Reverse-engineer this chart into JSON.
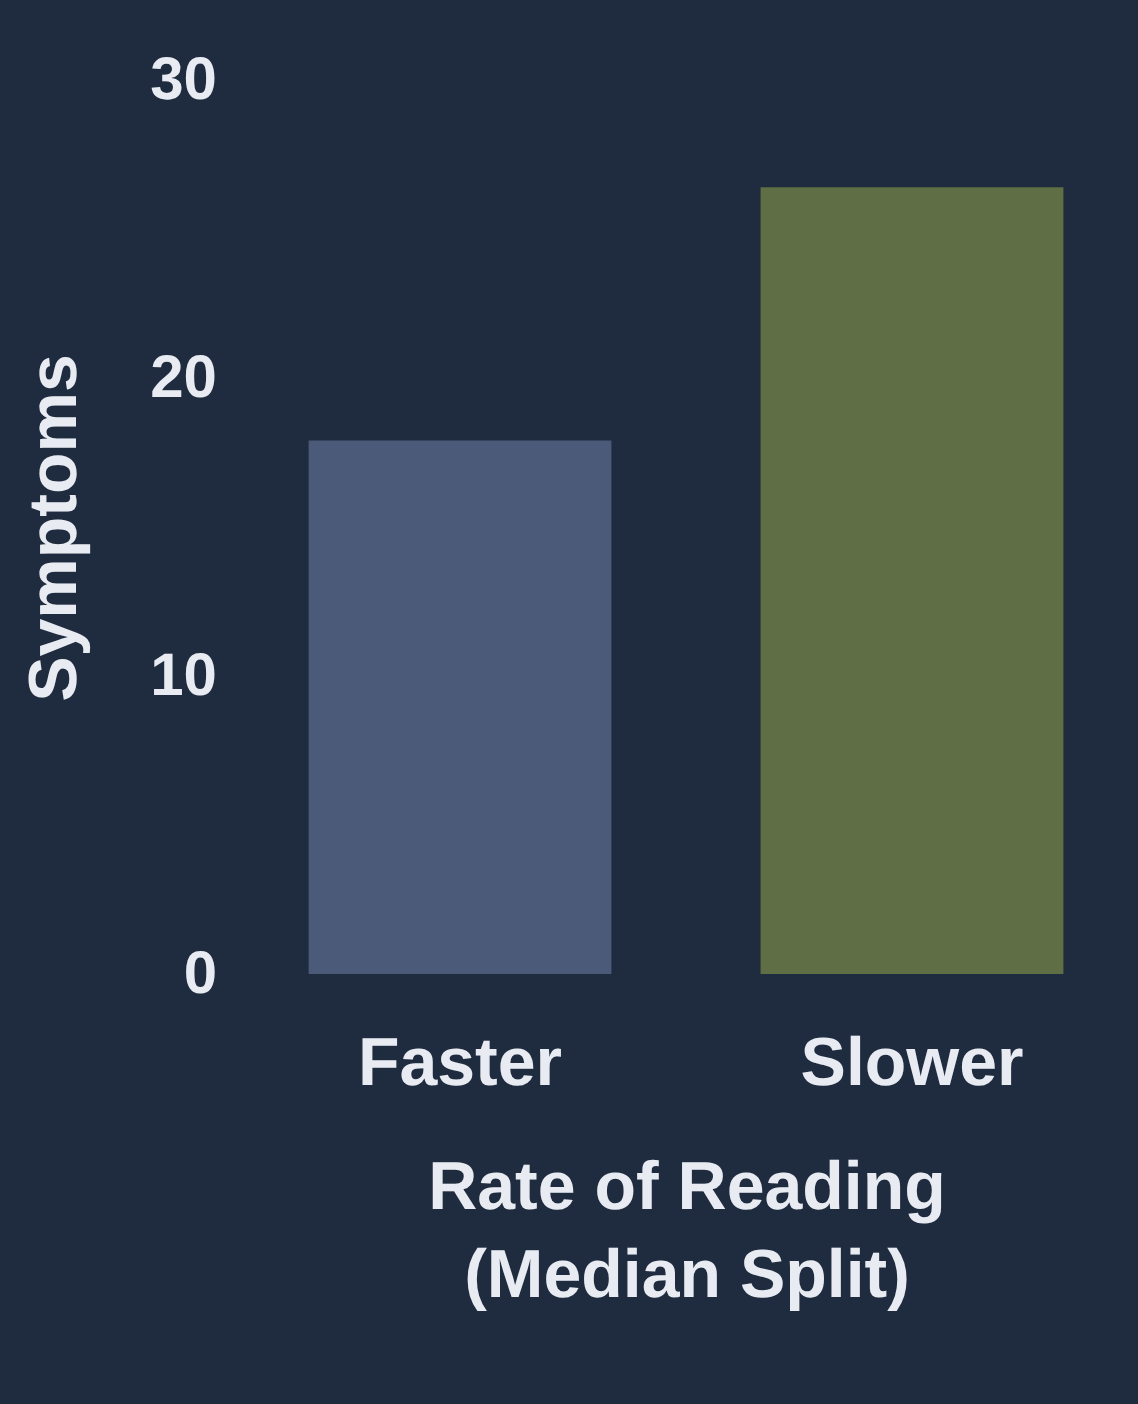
{
  "chart_data": {
    "type": "bar",
    "xlabel": "Rate of Reading\n(Median Split)",
    "ylabel": "Symptoms",
    "categories": [
      "Faster",
      "Slower"
    ],
    "values": [
      17.9,
      26.4
    ],
    "colors": [
      "#4a5a78",
      "#5f6e45"
    ],
    "ylim": [
      0,
      30
    ],
    "yticks": [
      0,
      10,
      20,
      30
    ],
    "grid": false
  }
}
